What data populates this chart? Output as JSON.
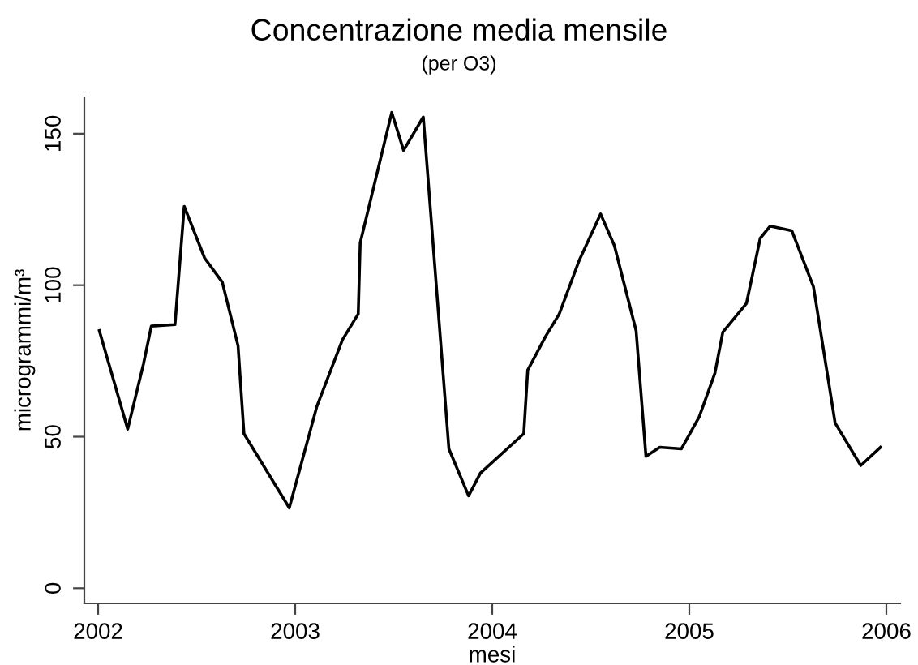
{
  "chart_data": {
    "type": "line",
    "title": "Concentrazione media mensile",
    "subtitle": "(per O3)",
    "xlabel": "mesi",
    "ylabel": "microgrammi/m³",
    "x": [
      2002.006,
      2002.15,
      2002.23,
      2002.27,
      2002.39,
      2002.437,
      2002.54,
      2002.63,
      2002.71,
      2002.74,
      2002.97,
      2003.11,
      2003.24,
      2003.32,
      2003.33,
      2003.49,
      2003.55,
      2003.65,
      2003.78,
      2003.88,
      2003.94,
      2004.16,
      2004.18,
      2004.27,
      2004.34,
      2004.44,
      2004.55,
      2004.62,
      2004.73,
      2004.78,
      2004.85,
      2004.96,
      2005.05,
      2005.13,
      2005.17,
      2005.29,
      2005.36,
      2005.41,
      2005.52,
      2005.63,
      2005.74,
      2005.87,
      2005.97
    ],
    "series": [
      {
        "color": "#000000",
        "values": [
          85,
          52.5,
          74,
          86.5,
          87,
          126,
          109,
          101,
          80,
          51,
          26.5,
          60,
          82,
          90.5,
          114,
          157,
          144.5,
          155.5,
          46,
          30.5,
          38,
          51,
          72,
          83,
          90.5,
          108,
          123.5,
          113,
          85,
          43.5,
          46.5,
          46,
          56.5,
          71,
          84.5,
          94,
          115.5,
          119.5,
          118,
          99.5,
          54.5,
          40.5,
          46.5
        ]
      }
    ],
    "xlim": [
      2001.93,
      2006.07
    ],
    "ylim": [
      -5,
      162
    ],
    "xticks": [
      2002,
      2003,
      2004,
      2005,
      2006
    ],
    "yticks": [
      0,
      50,
      100,
      150
    ],
    "grid": false,
    "legend": false,
    "marker": "none",
    "line_style": "solid"
  }
}
